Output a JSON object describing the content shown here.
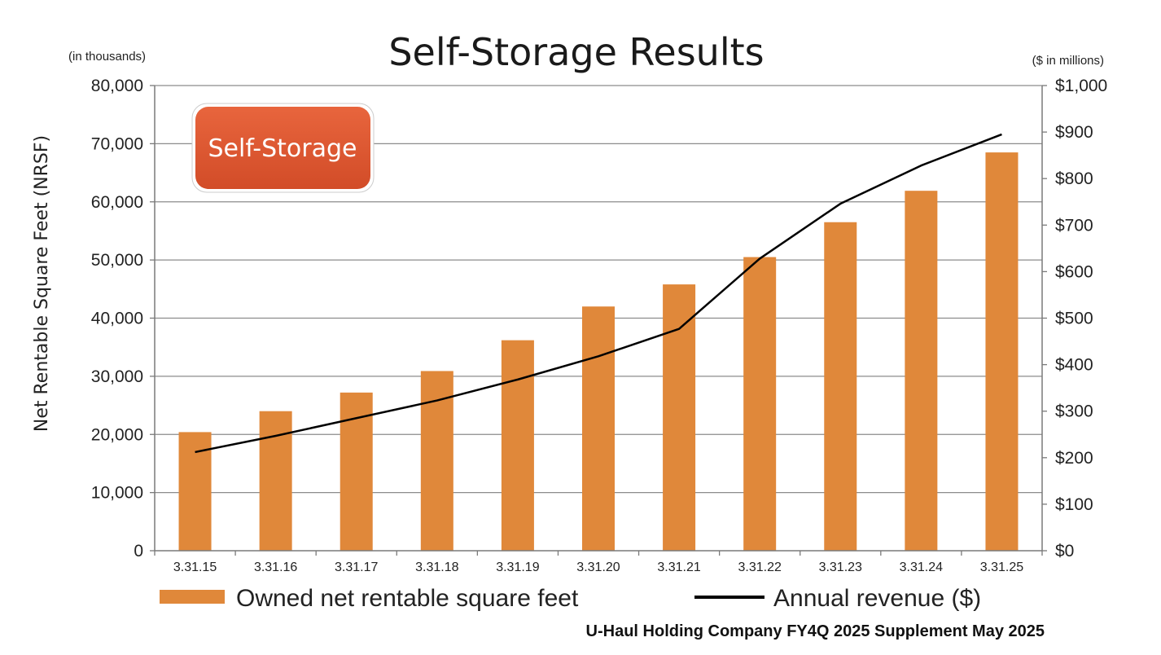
{
  "chart_data": {
    "type": "bar",
    "title": "Self-Storage Results",
    "left_unit": "(in thousands)",
    "right_unit": "($ in millions)",
    "ylabel": "Net Rentable Square Feet (NRSF)",
    "ylim": [
      0,
      80000
    ],
    "y2lim": [
      0,
      1000
    ],
    "yticks": [
      "0",
      "10,000",
      "20,000",
      "30,000",
      "40,000",
      "50,000",
      "60,000",
      "70,000",
      "80,000"
    ],
    "y2ticks": [
      "$0",
      "$100",
      "$200",
      "$300",
      "$400",
      "$500",
      "$600",
      "$700",
      "$800",
      "$900",
      "$1,000"
    ],
    "categories": [
      "3.31.15",
      "3.31.16",
      "3.31.17",
      "3.31.18",
      "3.31.19",
      "3.31.20",
      "3.31.21",
      "3.31.22",
      "3.31.23",
      "3.31.24",
      "3.31.25"
    ],
    "series": [
      {
        "name": "Owned net rentable square feet",
        "type": "bar",
        "axis": "left",
        "color": "#E0883A",
        "values": [
          20400,
          24000,
          27200,
          30900,
          36200,
          42000,
          45800,
          50500,
          56500,
          61900,
          68500
        ]
      },
      {
        "name": "Annual revenue ($)",
        "type": "line",
        "axis": "right",
        "color": "#000000",
        "values": [
          212,
          247,
          285,
          323,
          368,
          418,
          477,
          628,
          746,
          828,
          895
        ]
      }
    ],
    "grid": true,
    "legend_position": "bottom",
    "badge": "Self-Storage",
    "badge_color": "#E05A35"
  },
  "footer": "U-Haul Holding Company FY4Q 2025 Supplement May 2025"
}
